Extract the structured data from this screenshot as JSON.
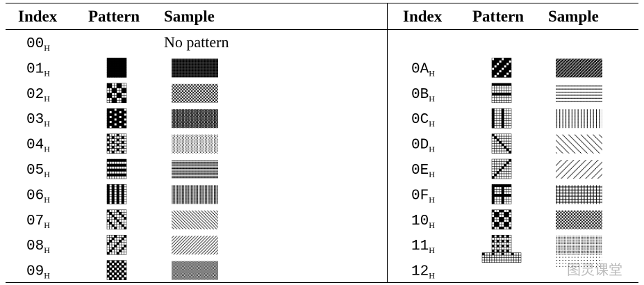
{
  "left": {
    "headers": [
      "Index",
      "Pattern",
      "Sample"
    ],
    "rows": [
      {
        "index": "00",
        "sub": "H",
        "sample": "No pattern"
      },
      {
        "index": "01",
        "sub": "H"
      },
      {
        "index": "02",
        "sub": "H"
      },
      {
        "index": "03",
        "sub": "H"
      },
      {
        "index": "04",
        "sub": "H"
      },
      {
        "index": "05",
        "sub": "H"
      },
      {
        "index": "06",
        "sub": "H"
      },
      {
        "index": "07",
        "sub": "H"
      },
      {
        "index": "08",
        "sub": "H"
      },
      {
        "index": "09",
        "sub": "H"
      }
    ]
  },
  "right": {
    "headers": [
      "Index",
      "Pattern",
      "Sample"
    ],
    "rows": [
      {
        "index": "0A",
        "sub": "H"
      },
      {
        "index": "0B",
        "sub": "H"
      },
      {
        "index": "0C",
        "sub": "H"
      },
      {
        "index": "0D",
        "sub": "H"
      },
      {
        "index": "0E",
        "sub": "H"
      },
      {
        "index": "0F",
        "sub": "H"
      },
      {
        "index": "10",
        "sub": "H"
      },
      {
        "index": "11",
        "sub": "H"
      },
      {
        "index": "12",
        "sub": "H"
      }
    ]
  },
  "watermark": "图灵课堂"
}
